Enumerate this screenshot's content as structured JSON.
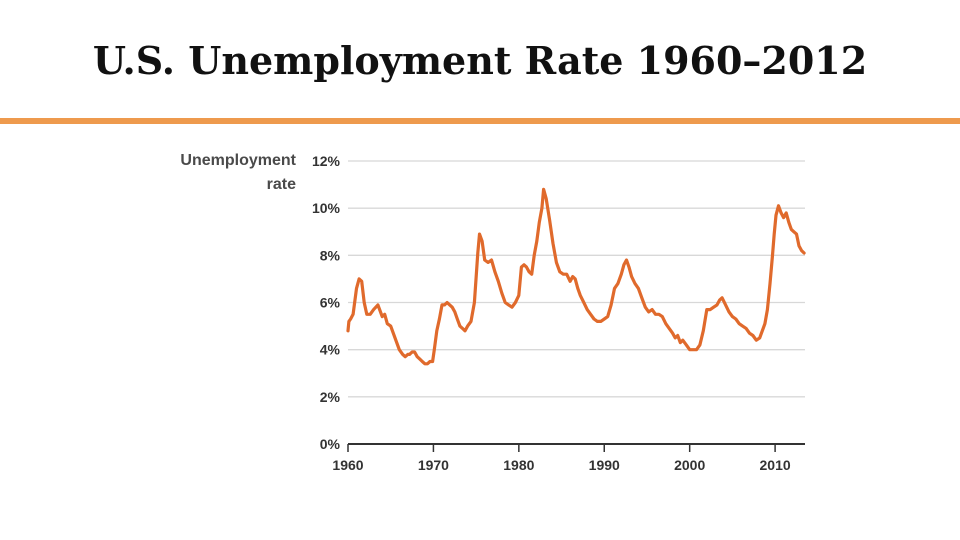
{
  "slide": {
    "title": "U.S. Unemployment Rate 1960–2012",
    "rule_color": "#EE9A4D"
  },
  "chart_data": {
    "type": "line",
    "title": "U.S. Unemployment Rate 1960–2012",
    "ylabel_lines": [
      "Unemployment",
      "rate"
    ],
    "xlabel": "",
    "xlim": [
      1960,
      2013.5
    ],
    "ylim": [
      0,
      12
    ],
    "x_ticks": [
      1960,
      1970,
      1980,
      1990,
      2000,
      2010
    ],
    "y_ticks": [
      0,
      2,
      4,
      6,
      8,
      10,
      12
    ],
    "y_tick_labels": [
      "0%",
      "2%",
      "4%",
      "6%",
      "8%",
      "10%",
      "12%"
    ],
    "grid": true,
    "line_color": "#E06A2C",
    "series": [
      {
        "name": "Unemployment rate",
        "x": [
          1960.0,
          1960.1,
          1960.3,
          1960.6,
          1961.0,
          1961.3,
          1961.6,
          1961.9,
          1962.2,
          1962.6,
          1963.0,
          1963.5,
          1963.8,
          1964.0,
          1964.3,
          1964.6,
          1965.0,
          1965.3,
          1965.7,
          1966.0,
          1966.4,
          1966.7,
          1967.0,
          1967.2,
          1967.5,
          1967.8,
          1968.1,
          1968.4,
          1968.7,
          1969.0,
          1969.3,
          1969.6,
          1969.9,
          1970.1,
          1970.4,
          1970.7,
          1971.0,
          1971.3,
          1971.6,
          1971.9,
          1972.2,
          1972.5,
          1972.8,
          1973.1,
          1973.4,
          1973.7,
          1974.0,
          1974.4,
          1974.8,
          1975.2,
          1975.4,
          1975.7,
          1976.0,
          1976.4,
          1976.8,
          1977.2,
          1977.6,
          1978.0,
          1978.4,
          1978.8,
          1979.2,
          1979.6,
          1980.0,
          1980.3,
          1980.6,
          1980.9,
          1981.2,
          1981.5,
          1981.8,
          1982.1,
          1982.4,
          1982.7,
          1982.9,
          1983.2,
          1983.6,
          1984.0,
          1984.4,
          1984.8,
          1985.2,
          1985.6,
          1986.0,
          1986.3,
          1986.6,
          1986.9,
          1987.2,
          1987.6,
          1988.0,
          1988.4,
          1988.8,
          1989.2,
          1989.6,
          1990.0,
          1990.4,
          1990.8,
          1991.2,
          1991.6,
          1992.0,
          1992.3,
          1992.6,
          1992.9,
          1993.2,
          1993.6,
          1994.0,
          1994.4,
          1994.8,
          1995.2,
          1995.6,
          1996.0,
          1996.4,
          1996.8,
          1997.2,
          1997.6,
          1998.0,
          1998.3,
          1998.6,
          1998.9,
          1999.2,
          1999.6,
          2000.0,
          2000.4,
          2000.8,
          2001.2,
          2001.6,
          2002.0,
          2002.4,
          2002.8,
          2003.2,
          2003.5,
          2003.8,
          2004.2,
          2004.6,
          2005.0,
          2005.4,
          2005.8,
          2006.2,
          2006.6,
          2007.0,
          2007.4,
          2007.8,
          2008.2,
          2008.5,
          2008.8,
          2009.1,
          2009.4,
          2009.7,
          2009.9,
          2010.1,
          2010.4,
          2010.7,
          2011.0,
          2011.3,
          2011.6,
          2011.9,
          2012.2,
          2012.5,
          2012.8,
          2013.1,
          2013.4
        ],
        "y": [
          4.8,
          5.2,
          5.3,
          5.5,
          6.6,
          7.0,
          6.9,
          6.0,
          5.5,
          5.5,
          5.7,
          5.9,
          5.6,
          5.4,
          5.5,
          5.1,
          5.0,
          4.7,
          4.3,
          4.0,
          3.8,
          3.7,
          3.8,
          3.8,
          3.9,
          3.9,
          3.7,
          3.6,
          3.5,
          3.4,
          3.4,
          3.5,
          3.5,
          4.0,
          4.8,
          5.3,
          5.9,
          5.9,
          6.0,
          5.9,
          5.8,
          5.6,
          5.3,
          5.0,
          4.9,
          4.8,
          5.0,
          5.2,
          6.0,
          8.1,
          8.9,
          8.6,
          7.8,
          7.7,
          7.8,
          7.3,
          6.9,
          6.4,
          6.0,
          5.9,
          5.8,
          6.0,
          6.3,
          7.5,
          7.6,
          7.5,
          7.3,
          7.2,
          8.0,
          8.6,
          9.4,
          10.0,
          10.8,
          10.4,
          9.5,
          8.5,
          7.7,
          7.3,
          7.2,
          7.2,
          6.9,
          7.1,
          7.0,
          6.6,
          6.3,
          6.0,
          5.7,
          5.5,
          5.3,
          5.2,
          5.2,
          5.3,
          5.4,
          5.9,
          6.6,
          6.8,
          7.2,
          7.6,
          7.8,
          7.5,
          7.1,
          6.8,
          6.6,
          6.2,
          5.8,
          5.6,
          5.7,
          5.5,
          5.5,
          5.4,
          5.1,
          4.9,
          4.7,
          4.5,
          4.6,
          4.3,
          4.4,
          4.2,
          4.0,
          4.0,
          4.0,
          4.2,
          4.8,
          5.7,
          5.7,
          5.8,
          5.9,
          6.1,
          6.2,
          5.9,
          5.6,
          5.4,
          5.3,
          5.1,
          5.0,
          4.9,
          4.7,
          4.6,
          4.4,
          4.5,
          4.8,
          5.1,
          5.7,
          6.8,
          8.0,
          8.9,
          9.7,
          10.1,
          9.8,
          9.6,
          9.8,
          9.4,
          9.1,
          9.0,
          8.9,
          8.4,
          8.2,
          8.1
        ]
      }
    ]
  }
}
